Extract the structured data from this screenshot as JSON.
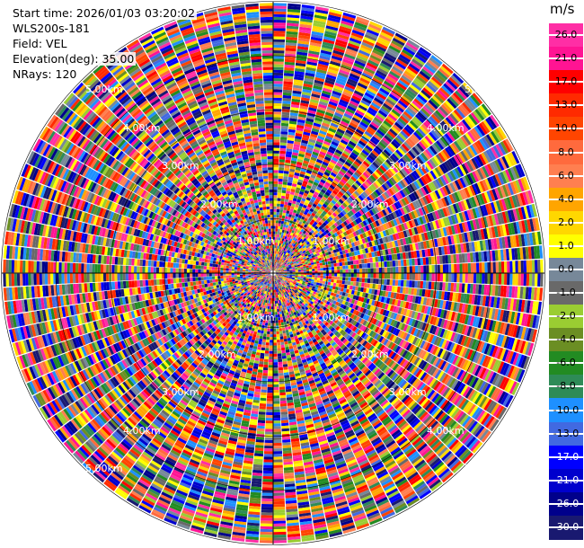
{
  "header": {
    "start_time": "Start time: 2026/01/03 03:20:02",
    "instrument": "WLS200s-181",
    "field": "Field: VEL",
    "elevation": "Elevation(deg): 35.00",
    "nrays": "NRays: 120"
  },
  "ring_labels": {
    "r1": "1.00km",
    "r2": "2.00km",
    "r3": "3.00km",
    "r4": "4.00km",
    "r5": "5.00km"
  },
  "colorbar": {
    "unit": "m/s",
    "labels": [
      "26.0",
      "21.0",
      "17.0",
      "13.0",
      "10.0",
      "8.0",
      "6.0",
      "4.0",
      "2.0",
      "1.0",
      "0.0",
      "-1.0",
      "-2.0",
      "-4.0",
      "-6.0",
      "-8.0",
      "-10.0",
      "-13.0",
      "-17.0",
      "-21.0",
      "-26.0",
      "-30.0"
    ],
    "colors": [
      "#ff2ea5",
      "#ff1493",
      "#ff0000",
      "#ff2a00",
      "#ff4500",
      "#ff6a3d",
      "#ff7f50",
      "#ffa500",
      "#ffd700",
      "#ffff00",
      "#778899",
      "#696969",
      "#9acd32",
      "#6b8e23",
      "#228b22",
      "#2e8b57",
      "#1e90ff",
      "#4169e1",
      "#0000ff",
      "#0000cd",
      "#00008b",
      "#191970"
    ]
  },
  "chart_data": {
    "type": "heatmap",
    "projection": "polar (PPI)",
    "field": "VEL",
    "units": "m/s",
    "nrays": 120,
    "elevation_deg": 35.0,
    "range_rings_km": [
      1,
      2,
      3,
      4,
      5
    ],
    "value_range": [
      -30.0,
      26.0
    ],
    "grid": true,
    "colorbar_position": "right"
  }
}
